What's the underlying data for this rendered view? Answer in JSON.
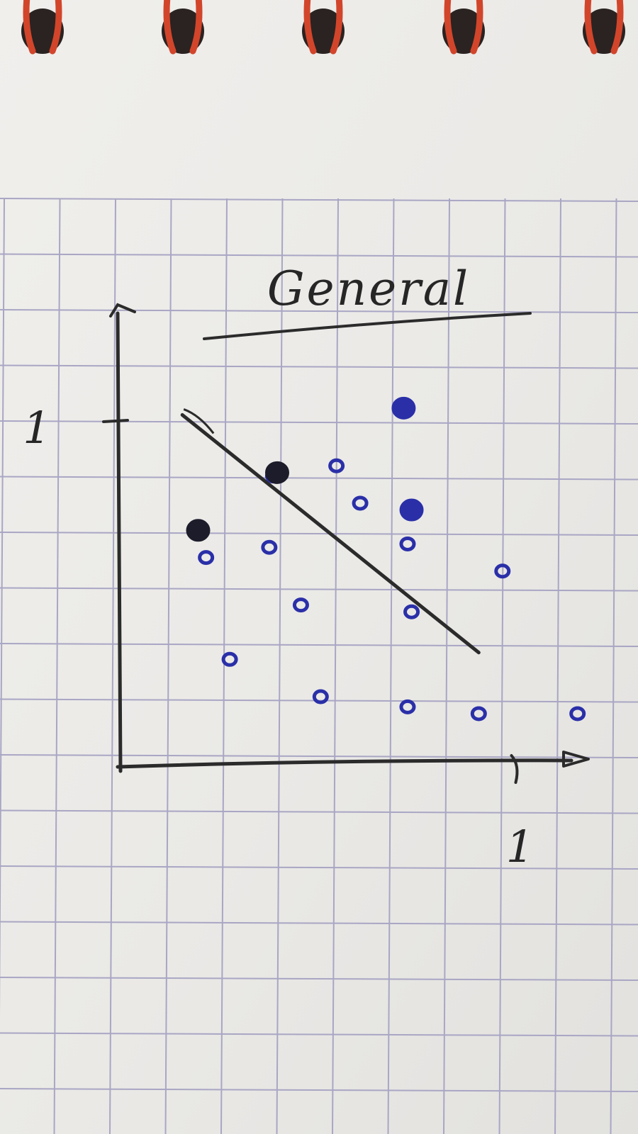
{
  "notebook": {
    "paper_color": "#eceae7",
    "grid_color": "#a9a6c4",
    "ring_color": "#d2452b",
    "ring_count": 5
  },
  "chart_data": {
    "type": "scatter",
    "title": "General",
    "xlabel": "",
    "ylabel": "",
    "x_ticks": [
      {
        "value": 1,
        "label": "1"
      }
    ],
    "y_ticks": [
      {
        "value": 1,
        "label": "1"
      }
    ],
    "xlim": [
      0,
      1.16
    ],
    "ylim": [
      0,
      1.32
    ],
    "grid": true,
    "ink": {
      "points": "#2a2fa8",
      "filled_points": "#1c1c2a",
      "lines": "#2b2b2b"
    },
    "decision_line": {
      "from": [
        0.16,
        1.02
      ],
      "to": [
        0.91,
        0.32
      ]
    },
    "series": [
      {
        "marker": "open-circle",
        "x": [
          0.39,
          0.55,
          0.61,
          0.73,
          0.74,
          0.97,
          0.22,
          0.38,
          0.46,
          0.28,
          0.73,
          0.91,
          0.51,
          1.16
        ],
        "y": [
          0.84,
          0.87,
          0.76,
          0.64,
          0.44,
          0.56,
          0.6,
          0.63,
          0.46,
          0.3,
          0.16,
          0.14,
          0.19,
          0.14
        ]
      },
      {
        "marker": "filled-circle",
        "x": [
          0.72,
          0.74,
          0.2,
          0.4
        ],
        "y": [
          1.04,
          0.74,
          0.68,
          0.85
        ]
      }
    ]
  }
}
